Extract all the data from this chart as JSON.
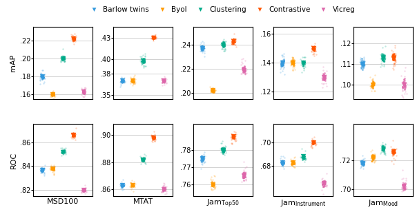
{
  "methods": [
    "Barlow twins",
    "Byol",
    "Clustering",
    "Contrastive",
    "Vicreg"
  ],
  "colors": [
    "#3399DD",
    "#FF9900",
    "#00AA88",
    "#FF5500",
    "#DD66AA"
  ],
  "datasets": [
    "MSD100",
    "MTAT",
    "JamTop50",
    "JamInstrument",
    "JamMood"
  ],
  "xlabel_subscripts": [
    "",
    "",
    "Top50",
    "Instrument",
    "Mood"
  ],
  "xlabel_bases": [
    "MSD100",
    "MTAT",
    "Jam",
    "Jam",
    "Jam"
  ],
  "map_data": {
    "MSD100": {
      "Barlow twins": {
        "mean": 0.18,
        "spread": 0.008
      },
      "Byol": {
        "mean": 0.16,
        "spread": 0.005
      },
      "Clustering": {
        "mean": 0.2,
        "spread": 0.005
      },
      "Contrastive": {
        "mean": 0.222,
        "spread": 0.006
      },
      "Vicreg": {
        "mean": 0.163,
        "spread": 0.006
      }
    },
    "MTAT": {
      "Barlow twins": {
        "mean": 0.37,
        "spread": 0.006
      },
      "Byol": {
        "mean": 0.37,
        "spread": 0.006
      },
      "Clustering": {
        "mean": 0.398,
        "spread": 0.008
      },
      "Contrastive": {
        "mean": 0.43,
        "spread": 0.005
      },
      "Vicreg": {
        "mean": 0.37,
        "spread": 0.007
      }
    },
    "JamTop50": {
      "Barlow twins": {
        "mean": 0.237,
        "spread": 0.006
      },
      "Byol": {
        "mean": 0.202,
        "spread": 0.004
      },
      "Clustering": {
        "mean": 0.24,
        "spread": 0.006
      },
      "Contrastive": {
        "mean": 0.243,
        "spread": 0.005
      },
      "Vicreg": {
        "mean": 0.219,
        "spread": 0.008
      }
    },
    "JamInstrument": {
      "Barlow twins": {
        "mean": 0.14,
        "spread": 0.007
      },
      "Byol": {
        "mean": 0.14,
        "spread": 0.006
      },
      "Clustering": {
        "mean": 0.14,
        "spread": 0.006
      },
      "Contrastive": {
        "mean": 0.15,
        "spread": 0.005
      },
      "Vicreg": {
        "mean": 0.13,
        "spread": 0.007
      }
    },
    "JamMood": {
      "Barlow twins": {
        "mean": 0.11,
        "spread": 0.005
      },
      "Byol": {
        "mean": 0.1,
        "spread": 0.004
      },
      "Clustering": {
        "mean": 0.113,
        "spread": 0.005
      },
      "Contrastive": {
        "mean": 0.113,
        "spread": 0.006
      },
      "Vicreg": {
        "mean": 0.1,
        "spread": 0.009
      }
    }
  },
  "roc_data": {
    "MSD100": {
      "Barlow twins": {
        "mean": 0.837,
        "spread": 0.004
      },
      "Byol": {
        "mean": 0.838,
        "spread": 0.004
      },
      "Clustering": {
        "mean": 0.852,
        "spread": 0.003
      },
      "Contrastive": {
        "mean": 0.866,
        "spread": 0.004
      },
      "Vicreg": {
        "mean": 0.82,
        "spread": 0.003
      }
    },
    "MTAT": {
      "Barlow twins": {
        "mean": 0.863,
        "spread": 0.003
      },
      "Byol": {
        "mean": 0.863,
        "spread": 0.003
      },
      "Clustering": {
        "mean": 0.882,
        "spread": 0.003
      },
      "Contrastive": {
        "mean": 0.898,
        "spread": 0.003
      },
      "Vicreg": {
        "mean": 0.86,
        "spread": 0.004
      }
    },
    "JamTop50": {
      "Barlow twins": {
        "mean": 0.775,
        "spread": 0.004
      },
      "Byol": {
        "mean": 0.76,
        "spread": 0.004
      },
      "Clustering": {
        "mean": 0.78,
        "spread": 0.004
      },
      "Contrastive": {
        "mean": 0.788,
        "spread": 0.004
      },
      "Vicreg": {
        "mean": 0.765,
        "spread": 0.006
      }
    },
    "JamInstrument": {
      "Barlow twins": {
        "mean": 0.683,
        "spread": 0.005
      },
      "Byol": {
        "mean": 0.683,
        "spread": 0.005
      },
      "Clustering": {
        "mean": 0.688,
        "spread": 0.005
      },
      "Contrastive": {
        "mean": 0.7,
        "spread": 0.004
      },
      "Vicreg": {
        "mean": 0.666,
        "spread": 0.007
      }
    },
    "JamMood": {
      "Barlow twins": {
        "mean": 0.718,
        "spread": 0.005
      },
      "Byol": {
        "mean": 0.722,
        "spread": 0.005
      },
      "Clustering": {
        "mean": 0.728,
        "spread": 0.005
      },
      "Contrastive": {
        "mean": 0.726,
        "spread": 0.005
      },
      "Vicreg": {
        "mean": 0.702,
        "spread": 0.008
      }
    }
  },
  "map_ylims": {
    "MSD100": [
      0.155,
      0.235
    ],
    "MTAT": [
      0.345,
      0.445
    ],
    "JamTop50": [
      0.195,
      0.255
    ],
    "JamInstrument": [
      0.115,
      0.165
    ],
    "JamMood": [
      0.093,
      0.128
    ]
  },
  "roc_ylims": {
    "MSD100": [
      0.815,
      0.875
    ],
    "MTAT": [
      0.855,
      0.908
    ],
    "JamTop50": [
      0.753,
      0.795
    ],
    "JamInstrument": [
      0.655,
      0.715
    ],
    "JamMood": [
      0.695,
      0.745
    ]
  },
  "map_yticks": {
    "MSD100": [
      0.16,
      0.18,
      0.2,
      0.22
    ],
    "MTAT": [
      0.35,
      0.38,
      0.4,
      0.43
    ],
    "JamTop50": [
      0.2,
      0.22,
      0.24
    ],
    "JamInstrument": [
      0.12,
      0.14,
      0.16
    ],
    "JamMood": [
      0.1,
      0.11,
      0.12
    ]
  },
  "roc_yticks": {
    "MSD100": [
      0.82,
      0.84,
      0.86
    ],
    "MTAT": [
      0.86,
      0.88,
      0.9
    ],
    "JamTop50": [
      0.76,
      0.77,
      0.78
    ],
    "JamInstrument": [
      0.68,
      0.7
    ],
    "JamMood": [
      0.7,
      0.72
    ]
  }
}
